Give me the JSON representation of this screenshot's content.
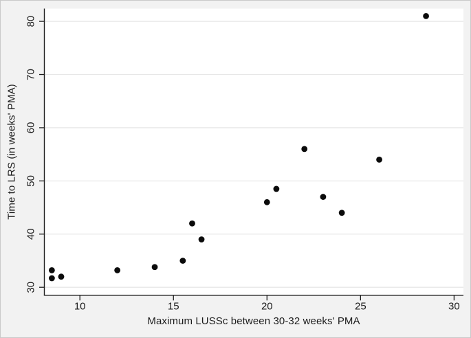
{
  "figure": {
    "background_color": "#f2f2f2",
    "plot_background_color": "#ffffff",
    "axis_color": "#1c1c1c",
    "gridline_color": "#e7e7e7"
  },
  "chart_data": {
    "type": "scatter",
    "title": "",
    "xlabel": "Maximum LUSSc between 30-32 weeks' PMA",
    "ylabel": "Time to LRS (in weeks' PMA)",
    "x_ticks": [
      10,
      15,
      20,
      25,
      30
    ],
    "y_ticks": [
      30,
      40,
      50,
      60,
      70,
      80
    ],
    "xlim": [
      8.1,
      30.5
    ],
    "ylim": [
      28.5,
      82.4
    ],
    "grid": "horizontal-only",
    "legend": "none",
    "marker": {
      "shape": "circle",
      "color": "#0b0b0b"
    },
    "points": [
      [
        8.5,
        33.2
      ],
      [
        8.5,
        31.7
      ],
      [
        9,
        32
      ],
      [
        12,
        33.2
      ],
      [
        14,
        33.8
      ],
      [
        15.5,
        35
      ],
      [
        16,
        42
      ],
      [
        16.5,
        39
      ],
      [
        20,
        46
      ],
      [
        20.5,
        48.5
      ],
      [
        22,
        56
      ],
      [
        23,
        47
      ],
      [
        24,
        44
      ],
      [
        26,
        54
      ],
      [
        28.5,
        81
      ]
    ]
  }
}
